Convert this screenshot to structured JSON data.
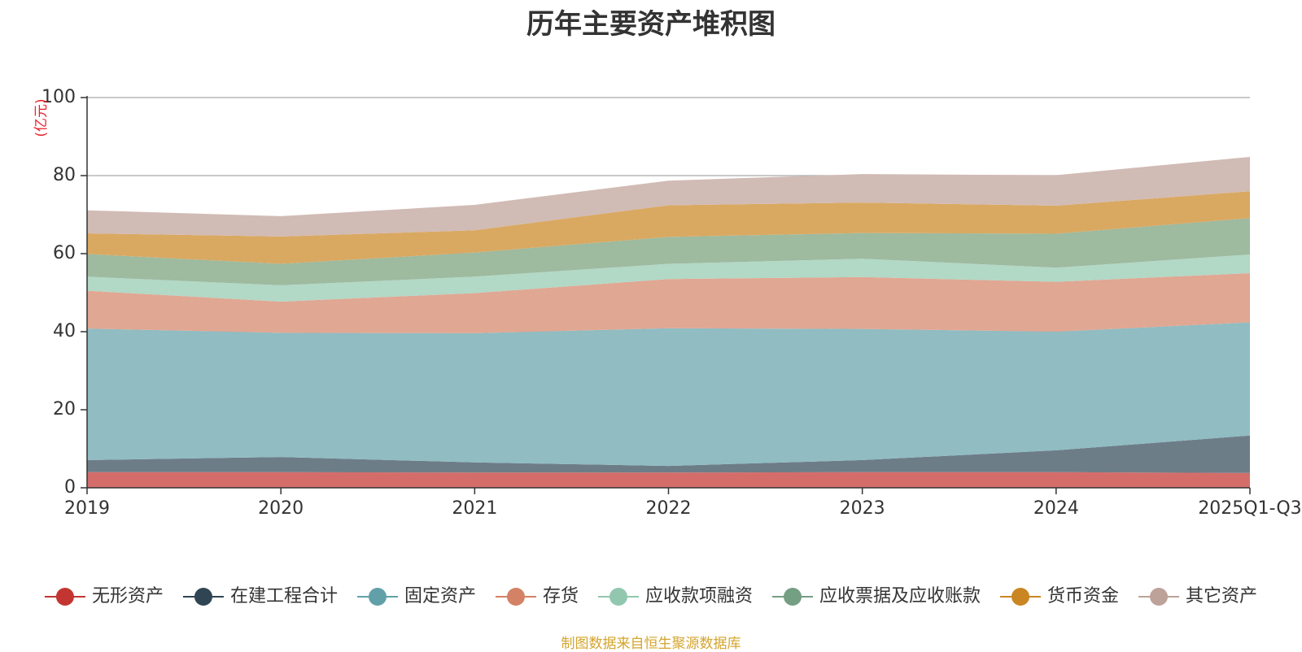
{
  "chart_data": {
    "type": "area",
    "stacked": true,
    "title": "历年主要资产堆积图",
    "ylabel": "(亿元)",
    "xlabel": "",
    "ylim": [
      0,
      100
    ],
    "yticks": [
      0,
      20,
      40,
      60,
      80,
      100
    ],
    "categories": [
      "2019",
      "2020",
      "2021",
      "2022",
      "2023",
      "2024",
      "2025Q1-Q3"
    ],
    "series": [
      {
        "name": "无形资产",
        "color": "#c23531",
        "area_color": "#d46d6a",
        "values": [
          4.0,
          4.0,
          3.9,
          3.9,
          4.0,
          4.0,
          3.8
        ]
      },
      {
        "name": "在建工程合计",
        "color": "#2f4554",
        "area_color": "#6d7d88",
        "values": [
          3.1,
          3.9,
          2.6,
          1.7,
          3.1,
          5.6,
          9.6
        ]
      },
      {
        "name": "固定资产",
        "color": "#61a0a8",
        "area_color": "#90bcc2",
        "values": [
          33.7,
          31.8,
          33.1,
          35.3,
          33.6,
          30.4,
          29.0
        ]
      },
      {
        "name": "存货",
        "color": "#d48265",
        "area_color": "#e0a793",
        "values": [
          9.7,
          8.0,
          10.3,
          12.6,
          13.3,
          12.8,
          12.6
        ]
      },
      {
        "name": "应收款项融资",
        "color": "#91c7ae",
        "area_color": "#b2d8c6",
        "values": [
          3.6,
          4.2,
          4.2,
          3.9,
          4.7,
          3.6,
          4.8
        ]
      },
      {
        "name": "应收票据及应收账款",
        "color": "#749f83",
        "area_color": "#9eba9f",
        "values": [
          5.8,
          5.5,
          6.2,
          6.9,
          6.6,
          8.7,
          9.3
        ]
      },
      {
        "name": "货币资金",
        "color": "#ca8622",
        "area_color": "#d9a962",
        "values": [
          5.3,
          7.0,
          5.7,
          8.1,
          7.8,
          7.2,
          6.9
        ]
      },
      {
        "name": "其它资产",
        "color": "#bda29a",
        "area_color": "#d1bbb5",
        "values": [
          5.9,
          5.2,
          6.5,
          6.3,
          7.3,
          7.8,
          8.8
        ]
      }
    ]
  },
  "footer": {
    "source_note": "制图数据来自恒生聚源数据库"
  }
}
